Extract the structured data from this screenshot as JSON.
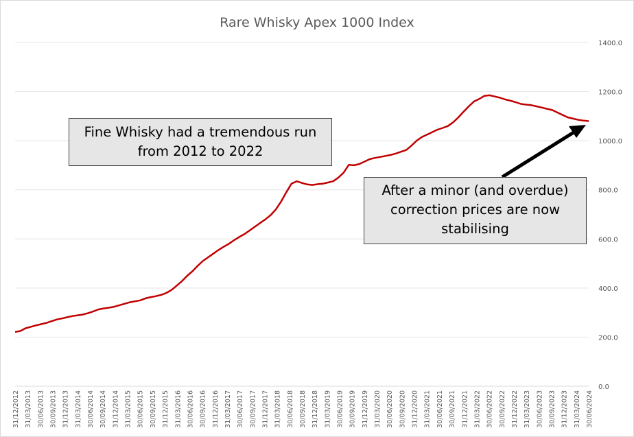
{
  "chart_data": {
    "type": "line",
    "title": "Rare Whisky Apex 1000 Index",
    "xlabel": "",
    "ylabel": "",
    "ylim": [
      0,
      1400
    ],
    "yticks": [
      "0.0",
      "200.0",
      "400.0",
      "600.0",
      "800.0",
      "1000.0",
      "1200.0",
      "1400.0"
    ],
    "y_axis_position": "right",
    "grid": true,
    "x_tick_labels": [
      "31/12/2012",
      "31/03/2013",
      "30/06/2013",
      "30/09/2013",
      "31/12/2013",
      "31/03/2014",
      "30/06/2014",
      "30/09/2014",
      "31/12/2014",
      "31/03/2015",
      "30/06/2015",
      "30/09/2015",
      "31/12/2015",
      "31/03/2016",
      "30/06/2016",
      "30/09/2016",
      "31/12/2016",
      "31/03/2017",
      "30/06/2017",
      "30/09/2017",
      "31/12/2017",
      "31/03/2018",
      "30/06/2018",
      "30/09/2018",
      "31/12/2018",
      "31/03/2019",
      "30/06/2019",
      "30/09/2019",
      "31/12/2019",
      "31/03/2020",
      "30/06/2020",
      "30/09/2020",
      "31/12/2020",
      "31/03/2021",
      "30/06/2021",
      "30/09/2021",
      "31/12/2021",
      "31/03/2022",
      "30/06/2022",
      "30/09/2022",
      "31/12/2022",
      "31/03/2023",
      "30/06/2023",
      "30/09/2023",
      "31/12/2023",
      "31/03/2024",
      "30/06/2024"
    ],
    "series": [
      {
        "color": "#c00000",
        "values": [
          221,
          225,
          236,
          242,
          248,
          253,
          258,
          265,
          272,
          276,
          281,
          286,
          289,
          292,
          298,
          305,
          313,
          317,
          320,
          324,
          330,
          336,
          342,
          346,
          350,
          358,
          363,
          367,
          372,
          380,
          392,
          410,
          428,
          450,
          468,
          490,
          510,
          525,
          540,
          555,
          568,
          580,
          595,
          608,
          620,
          635,
          650,
          665,
          680,
          697,
          720,
          752,
          790,
          825,
          835,
          828,
          822,
          820,
          823,
          825,
          830,
          835,
          850,
          870,
          902,
          900,
          905,
          915,
          925,
          930,
          934,
          938,
          942,
          948,
          955,
          962,
          980,
          1000,
          1015,
          1025,
          1035,
          1045,
          1052,
          1060,
          1075,
          1095,
          1118,
          1140,
          1160,
          1170,
          1183,
          1185,
          1180,
          1175,
          1168,
          1163,
          1157,
          1150,
          1147,
          1145,
          1140,
          1135,
          1130,
          1125,
          1115,
          1105,
          1095,
          1090,
          1085,
          1082,
          1080
        ]
      }
    ],
    "annotations": [
      "Fine Whisky had a tremendous run from 2012 to 2022",
      "After a minor (and overdue) correction prices are now stabilising"
    ]
  }
}
